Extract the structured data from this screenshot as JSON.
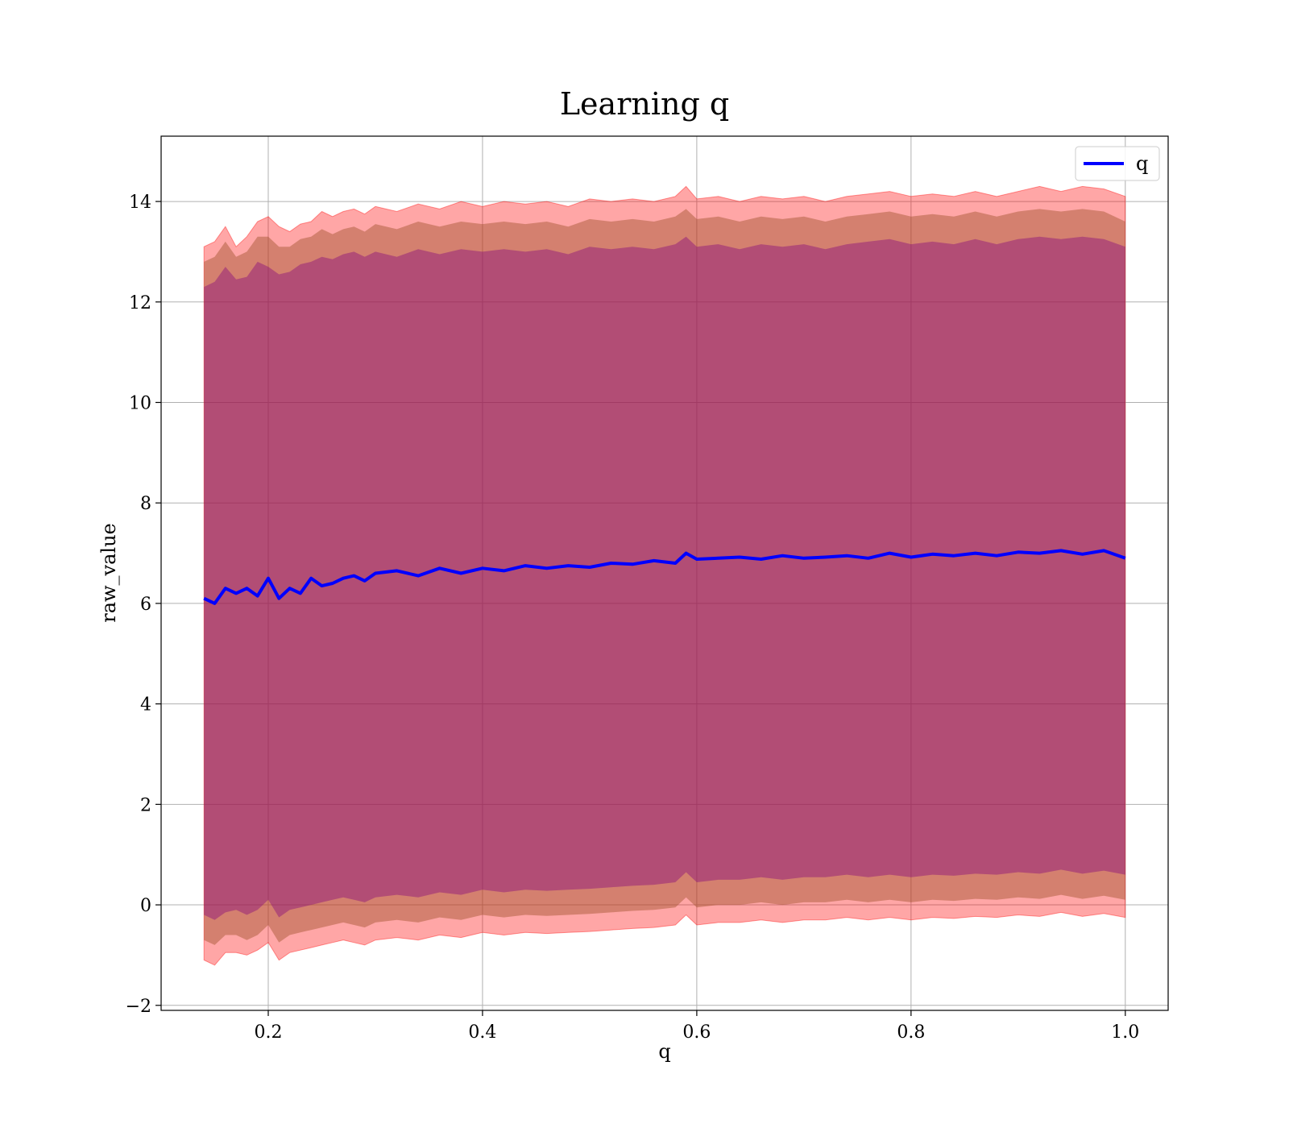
{
  "chart_data": {
    "type": "line",
    "title": "Learning q",
    "xlabel": "q",
    "ylabel": "raw_value",
    "xlim": [
      0.1,
      1.04
    ],
    "ylim": [
      -2.1,
      15.3
    ],
    "x_ticks": [
      0.2,
      0.4,
      0.6,
      0.8,
      1.0
    ],
    "x_tick_labels": [
      "0.2",
      "0.4",
      "0.6",
      "0.8",
      "1.0"
    ],
    "y_ticks": [
      -2,
      0,
      2,
      4,
      6,
      8,
      10,
      12,
      14
    ],
    "y_tick_labels": [
      "−2",
      "0",
      "2",
      "4",
      "6",
      "8",
      "10",
      "12",
      "14"
    ],
    "grid": true,
    "legend_position": "top-right",
    "colors": {
      "line": "#0000ff",
      "band_outer": "#ff0000",
      "band_mid": "#a0522d",
      "band_inner": "#800080",
      "grid": "#b0b0b0"
    },
    "series": [
      {
        "name": "q",
        "x": [
          0.14,
          0.15,
          0.16,
          0.17,
          0.18,
          0.19,
          0.2,
          0.21,
          0.22,
          0.23,
          0.24,
          0.25,
          0.26,
          0.27,
          0.28,
          0.29,
          0.3,
          0.32,
          0.34,
          0.36,
          0.38,
          0.4,
          0.42,
          0.44,
          0.46,
          0.48,
          0.5,
          0.52,
          0.54,
          0.56,
          0.58,
          0.59,
          0.6,
          0.62,
          0.64,
          0.66,
          0.68,
          0.7,
          0.72,
          0.74,
          0.76,
          0.78,
          0.8,
          0.82,
          0.84,
          0.86,
          0.88,
          0.9,
          0.92,
          0.94,
          0.96,
          0.98,
          1.0
        ],
        "values": [
          6.1,
          6.0,
          6.3,
          6.2,
          6.3,
          6.15,
          6.5,
          6.1,
          6.3,
          6.2,
          6.5,
          6.35,
          6.4,
          6.5,
          6.55,
          6.45,
          6.6,
          6.65,
          6.55,
          6.7,
          6.6,
          6.7,
          6.65,
          6.75,
          6.7,
          6.75,
          6.72,
          6.8,
          6.78,
          6.85,
          6.8,
          7.0,
          6.88,
          6.9,
          6.92,
          6.88,
          6.95,
          6.9,
          6.92,
          6.95,
          6.9,
          7.0,
          6.92,
          6.98,
          6.95,
          7.0,
          6.95,
          7.02,
          7.0,
          7.05,
          6.98,
          7.05,
          6.9
        ],
        "upper_outer": [
          13.1,
          13.2,
          13.5,
          13.1,
          13.3,
          13.6,
          13.7,
          13.5,
          13.4,
          13.55,
          13.6,
          13.8,
          13.7,
          13.8,
          13.85,
          13.75,
          13.9,
          13.8,
          13.95,
          13.85,
          14.0,
          13.9,
          14.0,
          13.95,
          14.0,
          13.9,
          14.05,
          14.0,
          14.05,
          14.0,
          14.1,
          14.3,
          14.05,
          14.1,
          14.0,
          14.1,
          14.05,
          14.1,
          14.0,
          14.1,
          14.15,
          14.2,
          14.1,
          14.15,
          14.1,
          14.2,
          14.1,
          14.2,
          14.3,
          14.2,
          14.3,
          14.25,
          14.1
        ],
        "upper_mid": [
          12.8,
          12.9,
          13.2,
          12.9,
          13.0,
          13.3,
          13.3,
          13.1,
          13.1,
          13.25,
          13.3,
          13.45,
          13.35,
          13.45,
          13.5,
          13.4,
          13.55,
          13.45,
          13.6,
          13.5,
          13.6,
          13.55,
          13.6,
          13.55,
          13.6,
          13.5,
          13.65,
          13.6,
          13.65,
          13.6,
          13.7,
          13.85,
          13.65,
          13.7,
          13.6,
          13.7,
          13.65,
          13.7,
          13.6,
          13.7,
          13.75,
          13.8,
          13.7,
          13.75,
          13.7,
          13.8,
          13.7,
          13.8,
          13.85,
          13.8,
          13.85,
          13.8,
          13.6
        ],
        "upper_inner": [
          12.3,
          12.4,
          12.7,
          12.45,
          12.5,
          12.8,
          12.7,
          12.55,
          12.6,
          12.75,
          12.8,
          12.9,
          12.85,
          12.95,
          13.0,
          12.9,
          13.0,
          12.9,
          13.05,
          12.95,
          13.05,
          13.0,
          13.05,
          13.0,
          13.05,
          12.95,
          13.1,
          13.05,
          13.1,
          13.05,
          13.15,
          13.3,
          13.1,
          13.15,
          13.05,
          13.15,
          13.1,
          13.15,
          13.05,
          13.15,
          13.2,
          13.25,
          13.15,
          13.2,
          13.15,
          13.25,
          13.15,
          13.25,
          13.3,
          13.25,
          13.3,
          13.25,
          13.1
        ],
        "lower_inner": [
          -0.2,
          -0.3,
          -0.15,
          -0.1,
          -0.2,
          -0.1,
          0.1,
          -0.25,
          -0.1,
          -0.05,
          0.0,
          0.05,
          0.1,
          0.15,
          0.1,
          0.05,
          0.15,
          0.2,
          0.15,
          0.25,
          0.2,
          0.3,
          0.25,
          0.3,
          0.28,
          0.3,
          0.32,
          0.35,
          0.38,
          0.4,
          0.45,
          0.65,
          0.45,
          0.5,
          0.5,
          0.55,
          0.5,
          0.55,
          0.55,
          0.6,
          0.55,
          0.6,
          0.55,
          0.6,
          0.58,
          0.62,
          0.6,
          0.65,
          0.62,
          0.7,
          0.62,
          0.68,
          0.6
        ],
        "lower_mid": [
          -0.7,
          -0.8,
          -0.6,
          -0.6,
          -0.7,
          -0.6,
          -0.4,
          -0.75,
          -0.6,
          -0.55,
          -0.5,
          -0.45,
          -0.4,
          -0.35,
          -0.4,
          -0.45,
          -0.35,
          -0.3,
          -0.35,
          -0.25,
          -0.3,
          -0.2,
          -0.25,
          -0.2,
          -0.22,
          -0.2,
          -0.18,
          -0.15,
          -0.12,
          -0.1,
          -0.05,
          0.15,
          -0.05,
          0.0,
          0.0,
          0.05,
          0.0,
          0.05,
          0.05,
          0.1,
          0.05,
          0.1,
          0.05,
          0.1,
          0.08,
          0.12,
          0.1,
          0.15,
          0.12,
          0.2,
          0.12,
          0.18,
          0.1
        ],
        "lower_outer": [
          -1.1,
          -1.2,
          -0.95,
          -0.95,
          -1.0,
          -0.9,
          -0.75,
          -1.1,
          -0.95,
          -0.9,
          -0.85,
          -0.8,
          -0.75,
          -0.7,
          -0.75,
          -0.8,
          -0.7,
          -0.65,
          -0.7,
          -0.6,
          -0.65,
          -0.55,
          -0.6,
          -0.55,
          -0.57,
          -0.55,
          -0.53,
          -0.5,
          -0.47,
          -0.45,
          -0.4,
          -0.2,
          -0.4,
          -0.35,
          -0.35,
          -0.3,
          -0.35,
          -0.3,
          -0.3,
          -0.25,
          -0.3,
          -0.25,
          -0.3,
          -0.25,
          -0.27,
          -0.23,
          -0.25,
          -0.2,
          -0.23,
          -0.15,
          -0.23,
          -0.17,
          -0.25
        ]
      }
    ]
  }
}
